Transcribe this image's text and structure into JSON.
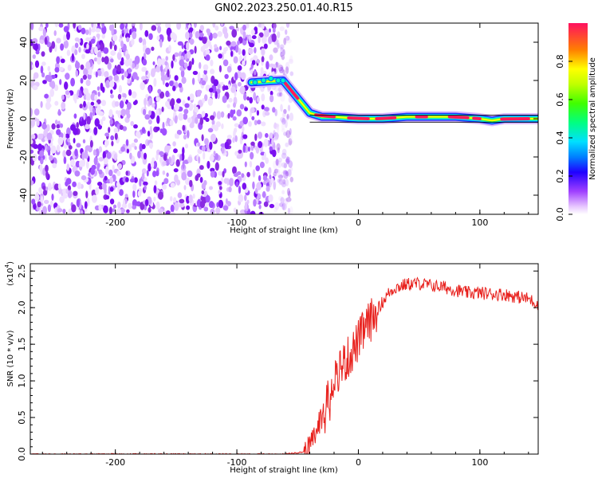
{
  "figure": {
    "title": "GN02.2023.250.01.40.R15"
  },
  "chart_data": [
    {
      "type": "heatmap",
      "name": "spectrogram",
      "xlabel": "Height of straight line (km)",
      "ylabel": "Frequency (Hz)",
      "xlim": [
        -270,
        148
      ],
      "ylim": [
        -50,
        50
      ],
      "xticks": [
        -200,
        -100,
        0,
        100
      ],
      "yticks": [
        40,
        20,
        0,
        -20,
        -40
      ],
      "colorbar": {
        "label": "Normalized spectral amplitude",
        "range": [
          0.0,
          1.0
        ],
        "ticks": [
          0.0,
          0.2,
          0.4,
          0.6,
          0.8
        ],
        "colormap": [
          "#ffffff",
          "#e0c0ff",
          "#8a2be2",
          "#4000ff",
          "#0060ff",
          "#00e0ff",
          "#00ff40",
          "#a0ff00",
          "#ffff00",
          "#ff8000",
          "#ff2050"
        ]
      },
      "noise_region_x": [
        -270,
        -60
      ],
      "signal_track": {
        "x": [
          -88,
          -62,
          -40,
          -30,
          -20,
          0,
          20,
          40,
          60,
          80,
          100,
          110,
          120,
          148
        ],
        "y": [
          19,
          20,
          3,
          1,
          1,
          0,
          0,
          1,
          1,
          1,
          0,
          -1,
          0,
          0
        ]
      }
    },
    {
      "type": "line",
      "name": "snr",
      "xlabel": "Height of straight line (km)",
      "ylabel": "SNR (10 * v/v)",
      "scale_label": "(x10",
      "scale_exp": "4",
      "xlim": [
        -270,
        148
      ],
      "ylim": [
        0.0,
        2.6
      ],
      "xticks": [
        -200,
        -100,
        0,
        100
      ],
      "yticks": [
        "0.0",
        "0.5",
        "1.0",
        "1.5",
        "2.0",
        "2.5"
      ],
      "color": "#e8211d",
      "series_outline": {
        "x": [
          -270,
          -60,
          -45,
          -40,
          -35,
          -30,
          -25,
          -20,
          -15,
          -10,
          -5,
          0,
          5,
          10,
          15,
          20,
          25,
          30,
          40,
          50,
          60,
          70,
          80,
          90,
          100,
          110,
          120,
          130,
          140,
          148
        ],
        "y": [
          0.0,
          0.0,
          0.03,
          0.12,
          0.28,
          0.55,
          0.8,
          1.05,
          1.2,
          1.28,
          1.4,
          1.55,
          1.7,
          1.82,
          1.95,
          2.08,
          2.2,
          2.27,
          2.32,
          2.33,
          2.3,
          2.28,
          2.24,
          2.2,
          2.2,
          2.19,
          2.18,
          2.15,
          2.12,
          2.05
        ]
      }
    }
  ]
}
